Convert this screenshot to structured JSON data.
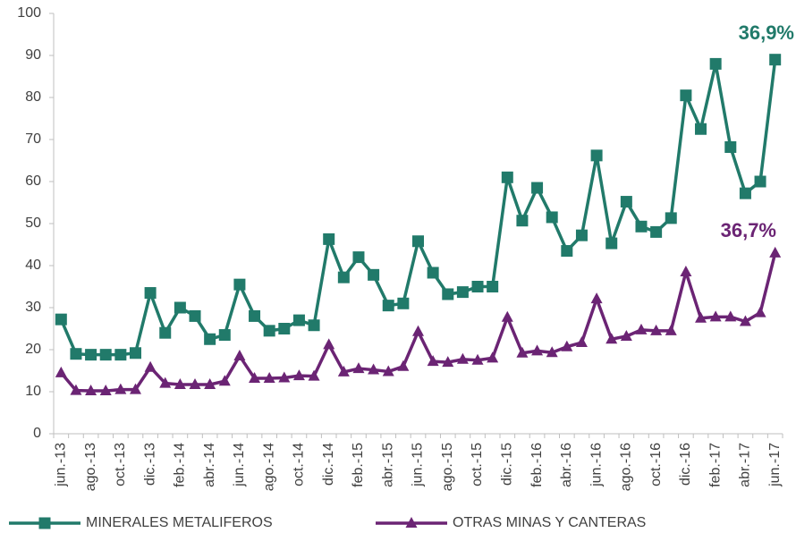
{
  "chart_data": {
    "type": "line",
    "categories": [
      "jun.-13",
      null,
      "ago.-13",
      null,
      "oct.-13",
      null,
      "dic.-13",
      null,
      "feb.-14",
      null,
      "abr.-14",
      null,
      "jun.-14",
      null,
      "ago.-14",
      null,
      "oct.-14",
      null,
      "dic.-14",
      null,
      "feb.-15",
      null,
      "abr.-15",
      null,
      "jun.-15",
      null,
      "ago.-15",
      null,
      "oct.-15",
      null,
      "dic.-15",
      null,
      "feb.-16",
      null,
      "abr.-16",
      null,
      "jun.-16",
      null,
      "ago.-16",
      null,
      "oct.-16",
      null,
      "dic.-16",
      null,
      "feb.-17",
      null,
      "abr.-17",
      null,
      "jun.-17"
    ],
    "series": [
      {
        "name": "MINERALES METALIFEROS",
        "color": "#217a6a",
        "marker": "square",
        "values": [
          27.2,
          19,
          18.8,
          18.8,
          18.8,
          19.2,
          33.5,
          24,
          30,
          28,
          22.5,
          23.5,
          35.5,
          28,
          24.5,
          25,
          27,
          25.8,
          46.3,
          37.2,
          42,
          37.8,
          30.5,
          31,
          45.8,
          38.3,
          33.2,
          33.7,
          35,
          35,
          61,
          50.7,
          58.5,
          51.5,
          43.5,
          47.2,
          66.2,
          45.3,
          55.2,
          49.3,
          48,
          51.3,
          80.5,
          72.5,
          88,
          68.2,
          57.2,
          60,
          89
        ]
      },
      {
        "name": "OTRAS MINAS Y CANTERAS",
        "color": "#6b2474",
        "marker": "triangle",
        "values": [
          14.5,
          10.3,
          10.2,
          10.2,
          10.5,
          10.5,
          15.8,
          12,
          11.7,
          11.7,
          11.7,
          12.5,
          18.5,
          13.2,
          13.2,
          13.3,
          13.8,
          13.7,
          21.2,
          14.7,
          15.5,
          15.2,
          14.8,
          16,
          24.3,
          17.2,
          17,
          17.7,
          17.5,
          18,
          27.7,
          19.2,
          19.7,
          19.3,
          20.7,
          21.7,
          32.1,
          22.5,
          23.2,
          24.7,
          24.5,
          24.5,
          38.5,
          27.5,
          27.8,
          27.8,
          26.7,
          28.8,
          43
        ]
      }
    ],
    "annotations": [
      "36,9%",
      "36,7%"
    ],
    "ylim": [
      0,
      100
    ],
    "yticks": [
      0,
      10,
      20,
      30,
      40,
      50,
      60,
      70,
      80,
      90,
      100
    ],
    "grid": false,
    "legend": "bottom"
  }
}
